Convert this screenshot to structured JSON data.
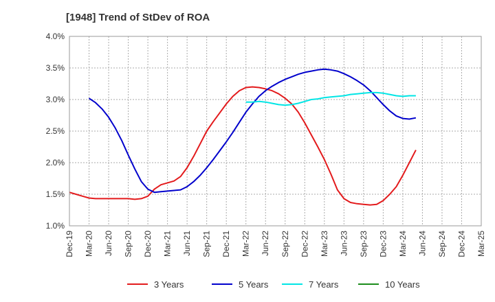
{
  "chart_data": {
    "type": "line",
    "title": "[1948]  Trend of StDev of ROA",
    "xlabel": "",
    "ylabel": "",
    "x_ticks": [
      "Dec-19",
      "Mar-20",
      "Jun-20",
      "Sep-20",
      "Dec-20",
      "Mar-21",
      "Jun-21",
      "Sep-21",
      "Dec-21",
      "Mar-22",
      "Jun-22",
      "Sep-22",
      "Dec-22",
      "Mar-23",
      "Jun-23",
      "Sep-23",
      "Dec-23",
      "Mar-24",
      "Jun-24",
      "Sep-24",
      "Dec-24",
      "Mar-25"
    ],
    "y_ticks": [
      "1.0%",
      "1.5%",
      "2.0%",
      "2.5%",
      "3.0%",
      "3.5%",
      "4.0%"
    ],
    "ylim": [
      1.0,
      4.0
    ],
    "grid": true,
    "legend_position": "bottom",
    "series": [
      {
        "name": "3 Years",
        "color": "#e31a1c",
        "start_index": 0,
        "values": [
          1.53,
          1.5,
          1.47,
          1.44,
          1.43,
          1.43,
          1.43,
          1.43,
          1.43,
          1.43,
          1.42,
          1.43,
          1.47,
          1.58,
          1.65,
          1.68,
          1.71,
          1.78,
          1.92,
          2.1,
          2.3,
          2.5,
          2.65,
          2.79,
          2.93,
          3.05,
          3.14,
          3.19,
          3.2,
          3.19,
          3.17,
          3.14,
          3.09,
          3.02,
          2.93,
          2.8,
          2.63,
          2.44,
          2.25,
          2.05,
          1.82,
          1.57,
          1.43,
          1.37,
          1.35,
          1.34,
          1.33,
          1.34,
          1.4,
          1.5,
          1.62,
          1.8,
          2.0,
          2.2
        ]
      },
      {
        "name": "5 Years",
        "color": "#0000cc",
        "start_index": 3,
        "values": [
          3.02,
          2.95,
          2.85,
          2.72,
          2.55,
          2.35,
          2.12,
          1.9,
          1.7,
          1.58,
          1.53,
          1.54,
          1.55,
          1.56,
          1.57,
          1.62,
          1.7,
          1.8,
          1.92,
          2.05,
          2.19,
          2.33,
          2.48,
          2.64,
          2.8,
          2.93,
          3.05,
          3.14,
          3.21,
          3.27,
          3.32,
          3.36,
          3.4,
          3.43,
          3.45,
          3.47,
          3.48,
          3.47,
          3.45,
          3.41,
          3.36,
          3.3,
          3.23,
          3.14,
          3.03,
          2.92,
          2.82,
          2.74,
          2.7,
          2.69,
          2.71
        ]
      },
      {
        "name": "7 Years",
        "color": "#00e5e5",
        "start_index": 27,
        "values": [
          2.96,
          2.96,
          2.97,
          2.96,
          2.94,
          2.92,
          2.91,
          2.92,
          2.94,
          2.97,
          3.0,
          3.01,
          3.03,
          3.04,
          3.05,
          3.06,
          3.08,
          3.09,
          3.1,
          3.11,
          3.11,
          3.1,
          3.08,
          3.06,
          3.05,
          3.06,
          3.06
        ]
      },
      {
        "name": "10 Years",
        "color": "#1a8c1a",
        "start_index": 0,
        "values": []
      }
    ]
  }
}
